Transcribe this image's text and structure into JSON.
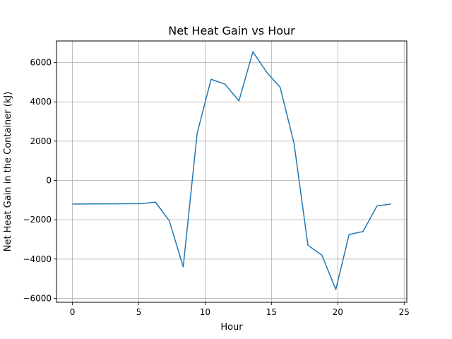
{
  "chart_data": {
    "type": "line",
    "title": "Net Heat Gain vs Hour",
    "xlabel": "Hour",
    "ylabel": "Net Heat Gain in the Container (kJ)",
    "xlim": [
      -1.2,
      25.2
    ],
    "ylim": [
      -6200,
      7100
    ],
    "xticks": [
      0,
      5,
      10,
      15,
      20,
      25
    ],
    "yticks": [
      -6000,
      -4000,
      -2000,
      0,
      2000,
      4000,
      6000
    ],
    "xtick_labels": [
      "0",
      "5",
      "10",
      "15",
      "20",
      "25"
    ],
    "ytick_labels": [
      "−6000",
      "−4000",
      "−2000",
      "0",
      "2000",
      "4000",
      "6000"
    ],
    "grid": true,
    "series": [
      {
        "color": "#1f77b4",
        "x": [
          0,
          5.2,
          6.25,
          7.3,
          8.35,
          9.4,
          10.45,
          11.5,
          12.55,
          13.6,
          14.65,
          15.65,
          16.7,
          17.75,
          18.8,
          19.85,
          20.85,
          21.9,
          22.95,
          24.0
        ],
        "y": [
          -1200,
          -1180,
          -1100,
          -2050,
          -4400,
          2400,
          5150,
          4900,
          4050,
          6550,
          5500,
          4750,
          1900,
          -3300,
          -3800,
          -5550,
          -2750,
          -2600,
          -1300,
          -1200
        ]
      }
    ]
  }
}
